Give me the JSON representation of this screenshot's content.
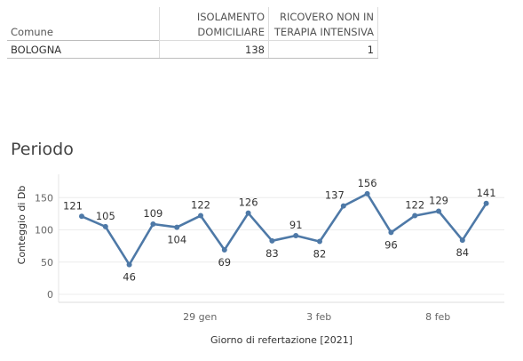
{
  "table": {
    "headers": {
      "comune": "Comune",
      "isolamento": [
        "ISOLAMENTO",
        "DOMICILIARE"
      ],
      "ricovero": [
        "RICOVERO NON IN",
        "TERAPIA INTENSIVA"
      ]
    },
    "rows": [
      {
        "comune": "BOLOGNA",
        "isolamento": "138",
        "ricovero": "1"
      }
    ]
  },
  "chart_data": {
    "type": "line",
    "title": "Periodo",
    "xlabel": "Giorno di refertazione [2021]",
    "ylabel": "Conteggio di Db",
    "ylim": [
      0,
      160
    ],
    "yticks": [
      0,
      50,
      100,
      150
    ],
    "x_tick_labels": [
      {
        "label": "29 gen",
        "index": 4
      },
      {
        "label": "3 feb",
        "index": 9
      },
      {
        "label": "8 feb",
        "index": 14
      }
    ],
    "values": [
      121,
      105,
      46,
      109,
      104,
      122,
      69,
      126,
      83,
      91,
      82,
      137,
      156,
      96,
      122,
      129,
      84,
      141
    ],
    "label_positions": [
      "above",
      "above",
      "below",
      "above",
      "below",
      "above",
      "below",
      "above",
      "below",
      "above",
      "below",
      "above",
      "above",
      "below",
      "above",
      "above",
      "below",
      "above"
    ],
    "grid": true,
    "line_color": "#4e79a7"
  }
}
